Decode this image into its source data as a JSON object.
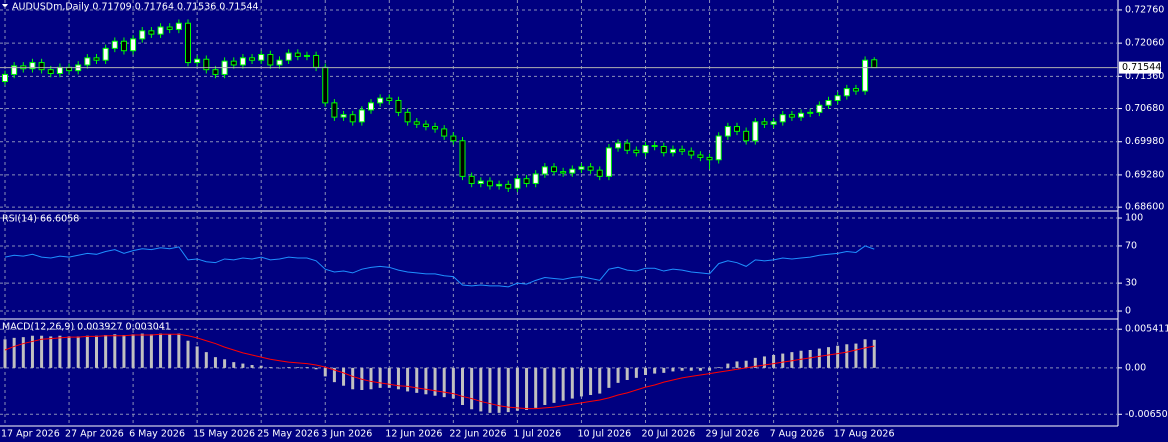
{
  "chart_data": [
    {
      "type": "candlestick",
      "title": "AUDUSDm,Daily  0.71709 0.71764 0.71536 0.71544",
      "up_color": "#ffffff",
      "down_color": "#000000",
      "wick_color": "#00ff00",
      "open": [
        0.7125,
        0.714,
        0.7158,
        0.7152,
        0.7165,
        0.715,
        0.7142,
        0.7155,
        0.7148,
        0.716,
        0.7175,
        0.717,
        0.7195,
        0.721,
        0.719,
        0.7215,
        0.7232,
        0.7225,
        0.724,
        0.7235,
        0.7248,
        0.7165,
        0.7172,
        0.715,
        0.714,
        0.7168,
        0.716,
        0.7175,
        0.717,
        0.7182,
        0.716,
        0.717,
        0.7185,
        0.7178,
        0.718,
        0.7155,
        0.708,
        0.705,
        0.7055,
        0.704,
        0.7065,
        0.708,
        0.709,
        0.7085,
        0.706,
        0.704,
        0.7035,
        0.703,
        0.7025,
        0.701,
        0.7,
        0.6925,
        0.691,
        0.6915,
        0.6905,
        0.6908,
        0.69,
        0.692,
        0.691,
        0.693,
        0.6945,
        0.6935,
        0.6932,
        0.694,
        0.6945,
        0.6938,
        0.6925,
        0.6985,
        0.6995,
        0.698,
        0.6975,
        0.699,
        0.6988,
        0.6975,
        0.6982,
        0.6978,
        0.697,
        0.6965,
        0.696,
        0.701,
        0.703,
        0.702,
        0.7,
        0.704,
        0.7035,
        0.704,
        0.7055,
        0.705,
        0.7058,
        0.706,
        0.7075,
        0.7085,
        0.7095,
        0.711,
        0.7105,
        0.71709
      ],
      "high": [
        0.7148,
        0.7166,
        0.7166,
        0.7173,
        0.7173,
        0.7158,
        0.7163,
        0.7163,
        0.7168,
        0.7183,
        0.7183,
        0.7203,
        0.7218,
        0.7218,
        0.7223,
        0.724,
        0.724,
        0.7248,
        0.7248,
        0.7256,
        0.7256,
        0.718,
        0.718,
        0.7158,
        0.7176,
        0.7176,
        0.7183,
        0.7183,
        0.719,
        0.719,
        0.7178,
        0.7193,
        0.7193,
        0.7188,
        0.7188,
        0.7163,
        0.7088,
        0.7063,
        0.7063,
        0.7073,
        0.7088,
        0.7098,
        0.7098,
        0.7093,
        0.7068,
        0.7048,
        0.7043,
        0.7038,
        0.7033,
        0.7018,
        0.7008,
        0.6933,
        0.6923,
        0.6923,
        0.6916,
        0.6916,
        0.6928,
        0.6928,
        0.6938,
        0.6953,
        0.6953,
        0.6943,
        0.6948,
        0.6953,
        0.6953,
        0.6946,
        0.6993,
        0.7003,
        0.7003,
        0.6988,
        0.6998,
        0.6998,
        0.6996,
        0.699,
        0.699,
        0.6986,
        0.6978,
        0.6973,
        0.7018,
        0.7038,
        0.7038,
        0.7028,
        0.7048,
        0.7048,
        0.7048,
        0.7063,
        0.7063,
        0.7066,
        0.7068,
        0.7083,
        0.7093,
        0.7103,
        0.7118,
        0.7118,
        0.7178,
        0.71764
      ],
      "low": [
        0.7117,
        0.7132,
        0.7144,
        0.7144,
        0.7142,
        0.7134,
        0.7134,
        0.714,
        0.714,
        0.7152,
        0.7162,
        0.7162,
        0.7187,
        0.7182,
        0.7182,
        0.7207,
        0.7217,
        0.7217,
        0.7227,
        0.7227,
        0.7157,
        0.7157,
        0.7142,
        0.7132,
        0.7132,
        0.7152,
        0.7152,
        0.7162,
        0.7162,
        0.7152,
        0.7152,
        0.7162,
        0.717,
        0.717,
        0.7147,
        0.7072,
        0.7042,
        0.7042,
        0.7032,
        0.7032,
        0.7057,
        0.7072,
        0.7077,
        0.7052,
        0.7032,
        0.7027,
        0.7022,
        0.7017,
        0.7002,
        0.6992,
        0.6917,
        0.6902,
        0.6902,
        0.6897,
        0.6897,
        0.6892,
        0.6892,
        0.6902,
        0.6902,
        0.6922,
        0.6927,
        0.6924,
        0.6924,
        0.6932,
        0.693,
        0.6917,
        0.6917,
        0.6977,
        0.6972,
        0.6967,
        0.6967,
        0.698,
        0.6967,
        0.6967,
        0.697,
        0.6962,
        0.6957,
        0.694,
        0.6952,
        0.7002,
        0.7012,
        0.6992,
        0.6992,
        0.7027,
        0.7027,
        0.7032,
        0.7042,
        0.7042,
        0.705,
        0.7052,
        0.7067,
        0.7077,
        0.7087,
        0.7097,
        0.7097,
        0.71536
      ],
      "close": [
        0.714,
        0.7158,
        0.7152,
        0.7165,
        0.715,
        0.7142,
        0.7155,
        0.7148,
        0.716,
        0.7175,
        0.717,
        0.7195,
        0.721,
        0.719,
        0.7215,
        0.7232,
        0.7225,
        0.724,
        0.7235,
        0.7248,
        0.7165,
        0.7172,
        0.715,
        0.714,
        0.7168,
        0.716,
        0.7175,
        0.717,
        0.7182,
        0.716,
        0.717,
        0.7185,
        0.7178,
        0.718,
        0.7155,
        0.708,
        0.705,
        0.7055,
        0.704,
        0.7065,
        0.708,
        0.709,
        0.7085,
        0.706,
        0.704,
        0.7035,
        0.703,
        0.7025,
        0.701,
        0.7,
        0.6925,
        0.691,
        0.6915,
        0.6905,
        0.6908,
        0.69,
        0.692,
        0.691,
        0.693,
        0.6945,
        0.6935,
        0.6932,
        0.694,
        0.6945,
        0.6938,
        0.6925,
        0.6985,
        0.6995,
        0.698,
        0.6975,
        0.699,
        0.6988,
        0.6975,
        0.6982,
        0.6978,
        0.697,
        0.6965,
        0.696,
        0.701,
        0.703,
        0.702,
        0.7,
        0.704,
        0.7035,
        0.704,
        0.7055,
        0.705,
        0.7058,
        0.706,
        0.7075,
        0.7085,
        0.7095,
        0.711,
        0.7105,
        0.717,
        0.71544
      ],
      "last_price": 0.71544,
      "ylim": [
        0.6854,
        0.7297
      ],
      "yticks": [
        {
          "value": 0.7276,
          "label": "0.72760"
        },
        {
          "value": 0.7206,
          "label": "0.72060"
        },
        {
          "value": 0.7136,
          "label": "0.71360"
        },
        {
          "value": 0.7068,
          "label": "0.70680"
        },
        {
          "value": 0.6998,
          "label": "0.69980"
        },
        {
          "value": 0.6928,
          "label": "0.69280"
        },
        {
          "value": 0.686,
          "label": "0.68600"
        }
      ],
      "grid": true
    },
    {
      "type": "line",
      "title": "RSI(14) 66.6058",
      "color": "#1e90ff",
      "values": [
        58,
        60,
        59,
        61,
        58,
        57,
        59,
        58,
        60,
        62,
        61,
        64,
        66,
        62,
        65,
        67,
        66,
        68,
        67,
        69,
        55,
        56,
        53,
        52,
        56,
        55,
        57,
        56,
        58,
        55,
        56,
        58,
        57,
        57,
        54,
        45,
        42,
        43,
        41,
        45,
        47,
        48,
        47,
        44,
        42,
        41,
        40,
        40,
        38,
        37,
        28,
        27,
        28,
        27,
        27,
        26,
        30,
        29,
        33,
        36,
        35,
        34,
        36,
        37,
        35,
        33,
        45,
        47,
        44,
        43,
        46,
        46,
        43,
        45,
        44,
        42,
        41,
        40,
        51,
        54,
        52,
        48,
        55,
        54,
        55,
        57,
        56,
        57,
        58,
        60,
        61,
        62,
        64,
        63,
        70,
        66.6058
      ],
      "ylim": [
        -7.5,
        106.5
      ],
      "yticks": [
        0,
        30,
        70,
        100
      ],
      "grid": true
    },
    {
      "type": "macd",
      "title": "MACD(12,26,9) 0.003927 0.003041",
      "histogram_color": "#c0c0c0",
      "signal_color": "#ff0000",
      "categories": [
        "17 Apr 2026",
        null,
        null,
        null,
        null,
        null,
        null,
        "27 Apr 2026",
        null,
        null,
        null,
        null,
        null,
        null,
        "6 May 2026",
        null,
        null,
        null,
        null,
        null,
        null,
        "15 May 2026",
        null,
        null,
        null,
        null,
        null,
        null,
        "25 May 2026",
        null,
        null,
        null,
        null,
        null,
        null,
        "3 Jun 2026",
        null,
        null,
        null,
        null,
        null,
        null,
        "12 Jun 2026",
        null,
        null,
        null,
        null,
        null,
        null,
        "22 Jun 2026",
        null,
        null,
        null,
        null,
        null,
        null,
        "1 Jul 2026",
        null,
        null,
        null,
        null,
        null,
        null,
        "10 Jul 2026",
        null,
        null,
        null,
        null,
        null,
        null,
        "20 Jul 2026",
        null,
        null,
        null,
        null,
        null,
        null,
        "29 Jul 2026",
        null,
        null,
        null,
        null,
        null,
        null,
        "7 Aug 2026",
        null,
        null,
        null,
        null,
        null,
        null,
        "17 Aug 2026",
        null,
        null,
        null,
        null,
        null
      ],
      "histogram": [
        0.004,
        0.0042,
        0.0043,
        0.0045,
        0.0045,
        0.0044,
        0.0045,
        0.0044,
        0.0044,
        0.0045,
        0.0045,
        0.0046,
        0.0047,
        0.0046,
        0.0047,
        0.0048,
        0.0047,
        0.0048,
        0.0047,
        0.0048,
        0.0038,
        0.003,
        0.0022,
        0.0015,
        0.0012,
        0.0008,
        0.0006,
        0.0004,
        0.0003,
        0.0001,
        0.0,
        0.0001,
        0.0001,
        0.0001,
        -0.0002,
        -0.0012,
        -0.002,
        -0.0025,
        -0.003,
        -0.0031,
        -0.003,
        -0.0028,
        -0.0028,
        -0.003,
        -0.0033,
        -0.0035,
        -0.0037,
        -0.0039,
        -0.0041,
        -0.0043,
        -0.0052,
        -0.0058,
        -0.0061,
        -0.0063,
        -0.0063,
        -0.0062,
        -0.006,
        -0.0059,
        -0.0056,
        -0.0052,
        -0.0049,
        -0.0046,
        -0.0043,
        -0.004,
        -0.0038,
        -0.0036,
        -0.0028,
        -0.0021,
        -0.0017,
        -0.0014,
        -0.001,
        -0.0008,
        -0.0007,
        -0.0005,
        -0.0004,
        -0.0004,
        -0.0004,
        -0.0004,
        0.0001,
        0.0006,
        0.0009,
        0.001,
        0.0014,
        0.0016,
        0.0018,
        0.002,
        0.0022,
        0.0024,
        0.0025,
        0.0027,
        0.0029,
        0.0031,
        0.0033,
        0.0034,
        0.004,
        0.003927
      ],
      "signal": [
        0.0025,
        0.003,
        0.0034,
        0.0037,
        0.004,
        0.0041,
        0.0042,
        0.0043,
        0.0043,
        0.0044,
        0.0044,
        0.0045,
        0.0045,
        0.0045,
        0.0046,
        0.0046,
        0.0046,
        0.0047,
        0.0047,
        0.0047,
        0.0045,
        0.0042,
        0.0038,
        0.0034,
        0.0029,
        0.0025,
        0.0021,
        0.0018,
        0.0015,
        0.0012,
        0.001,
        0.0008,
        0.0007,
        0.0006,
        0.0004,
        0.0001,
        -0.0003,
        -0.0007,
        -0.0012,
        -0.0016,
        -0.0019,
        -0.0021,
        -0.0023,
        -0.0025,
        -0.0026,
        -0.0028,
        -0.003,
        -0.0032,
        -0.0034,
        -0.0036,
        -0.004,
        -0.0043,
        -0.0047,
        -0.005,
        -0.0053,
        -0.0055,
        -0.0056,
        -0.0057,
        -0.0057,
        -0.0056,
        -0.0055,
        -0.0053,
        -0.0051,
        -0.0049,
        -0.0047,
        -0.0045,
        -0.0042,
        -0.0038,
        -0.0035,
        -0.0031,
        -0.0027,
        -0.0024,
        -0.002,
        -0.0017,
        -0.0014,
        -0.0012,
        -0.001,
        -0.0008,
        -0.0006,
        -0.0004,
        -0.0002,
        0.0,
        0.0002,
        0.0004,
        0.0006,
        0.0008,
        0.001,
        0.0012,
        0.0014,
        0.0016,
        0.0018,
        0.002,
        0.0022,
        0.0025,
        0.0028,
        0.003041
      ],
      "ylim": [
        -0.008,
        0.0067
      ],
      "yticks": [
        0.005411,
        {
          "value": 0,
          "label": "0.00"
        },
        -0.006501
      ],
      "grid": true
    }
  ]
}
